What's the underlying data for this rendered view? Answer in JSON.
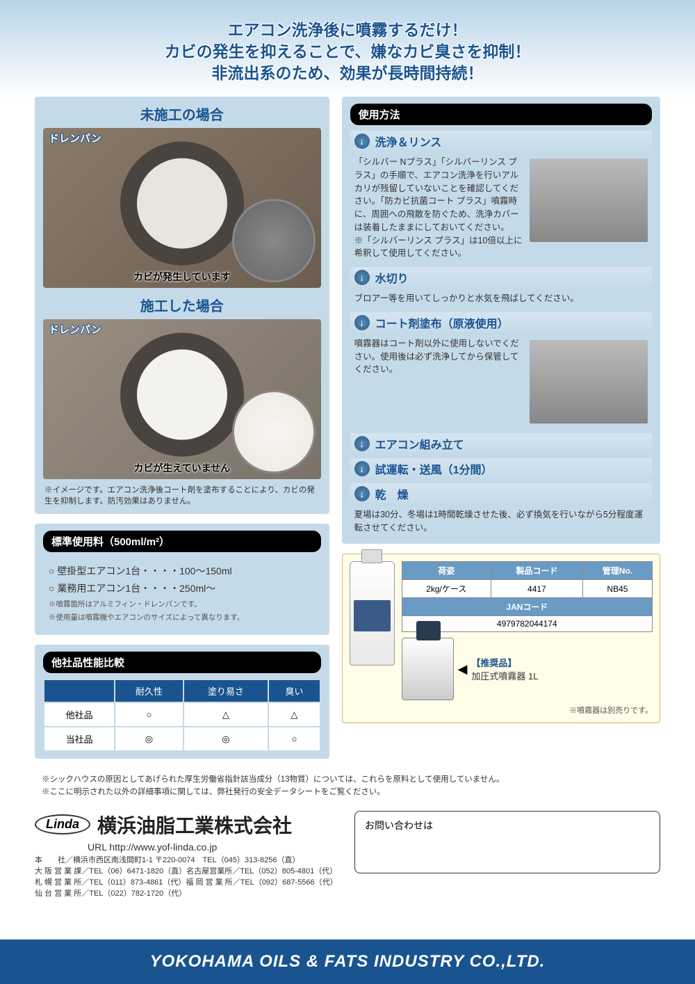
{
  "header": {
    "line1": "エアコン洗浄後に噴霧するだけ！",
    "line2": "カビの発生を抑えることで、嫌なカビ臭さを抑制！",
    "line3": "非流出系のため、効果が長時間持続！"
  },
  "left": {
    "beforeTitle": "未施工の場合",
    "beforeTopLabel": "ドレンパン",
    "beforeCaption": "カビが発生しています",
    "afterTitle": "施工した場合",
    "afterTopLabel": "ドレンパン",
    "afterCaption": "カビが生えていません",
    "imgDisclaimer": "※イメージです。エアコン洗浄後コート剤を塗布することにより、カビの発生を抑制します。防汚効果はありません。",
    "usageHeader": "標準使用料（500ml/m²）",
    "usageItem1": "○ 壁掛型エアコン1台・・・・100〜150ml",
    "usageItem2": "○ 業務用エアコン1台・・・・250ml〜",
    "usageNote1": "※噴霧箇所はアルミフィン・ドレンパンです。",
    "usageNote2": "※使用量は噴霧機やエアコンのサイズによって異なります。",
    "compHeader": "他社品性能比較",
    "compCols": [
      "",
      "耐久性",
      "塗り易さ",
      "臭い"
    ],
    "compRows": [
      [
        "他社品",
        "○",
        "△",
        "△"
      ],
      [
        "当社品",
        "◎",
        "◎",
        "○"
      ]
    ]
  },
  "right": {
    "methodHeader": "使用方法",
    "steps": [
      {
        "title": "洗浄＆リンス",
        "body": "「シルバー Nプラス」「シルバーリンス プラス」の手順で、エアコン洗浄を行いアルカリが残留していないことを確認してください。「防カビ抗菌コート プラス」噴霧時に、周囲への飛散を防ぐため、洗浄カバーは装着したままにしておいてください。\n※「シルバーリンス プラス」は10倍以上に希釈して使用してください。",
        "hasImg": true
      },
      {
        "title": "水切り",
        "body": "ブロアー等を用いてしっかりと水気を飛ばしてください。",
        "hasImg": false
      },
      {
        "title": "コート剤塗布（原液使用）",
        "body": "噴霧器はコート剤以外に使用しないでください。使用後は必ず洗浄してから保管してください。",
        "hasImg": true
      },
      {
        "title": "エアコン組み立て",
        "body": "",
        "hasImg": false
      },
      {
        "title": "試運転・送風（1分間）",
        "body": "",
        "hasImg": false
      },
      {
        "title": "乾　燥",
        "body": "夏場は30分、冬場は1時間乾燥させた後、必ず換気を行いながら5分程度運転させてください。",
        "hasImg": false
      }
    ],
    "prodTable": {
      "headers": [
        "荷姿",
        "製品コード",
        "管理No."
      ],
      "row": [
        "2kg/ケース",
        "4417",
        "NB45"
      ],
      "janHeader": "JANコード",
      "jan": "4979782044174"
    },
    "recLabel": "【推奨品】",
    "recItem": "加圧式噴霧器 1L",
    "sepNote": "※噴霧器は別売りです。"
  },
  "bottomNotes": {
    "n1": "※シックハウスの原因としてあげられた厚生労働省指針該当成分（13物質）については、これらを原料として使用していません。",
    "n2": "※ここに明示された以外の詳細事項に関しては、弊社発行の安全データシートをご覧ください。"
  },
  "company": {
    "linda": "Linda",
    "name": "横浜油脂工業株式会社",
    "url": "URL http://www.yof-linda.co.jp",
    "addr1": "本　　社／横浜市西区南浅間町1-1 〒220-0074　TEL（045）313-8256（直）",
    "addr2": "大 阪 営 業 課／TEL（06）6471-1820（直）名古屋営業所／TEL（052）805-4801（代）",
    "addr3": "札 幌 営 業 所／TEL（011）873-4861（代）福 岡 営 業 所／TEL（092）687-5566（代）",
    "addr4": "仙 台 営 業 所／TEL（022）782-1720（代）",
    "contactLabel": "お問い合わせは"
  },
  "footer": "YOKOHAMA  OILS & FATS  INDUSTRY  CO.,LTD."
}
